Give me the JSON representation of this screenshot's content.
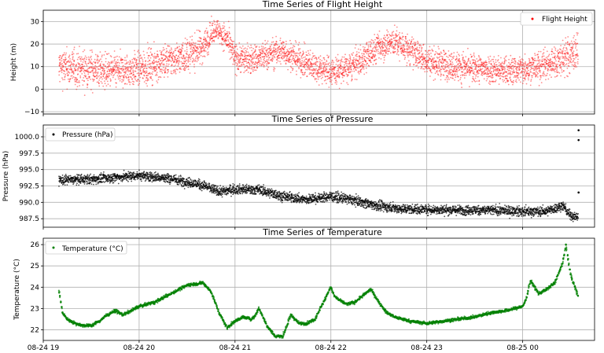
{
  "chart_data": [
    {
      "type": "scatter",
      "title": "Time Series of Flight Height",
      "xlabel": "",
      "ylabel": "Height (m)",
      "ylim": [
        -11,
        35
      ],
      "yticks": [
        -10,
        0,
        10,
        20,
        30
      ],
      "ytick_labels": [
        "−10",
        "0",
        "10",
        "20",
        "30"
      ],
      "grid": true,
      "legend_position": "top-right",
      "color": "#ff0000",
      "series": [
        {
          "name": "Flight Height",
          "x": [
            "19:10",
            "19:20",
            "19:30",
            "19:40",
            "19:50",
            "20:00",
            "20:10",
            "20:20",
            "20:30",
            "20:40",
            "20:48",
            "20:55",
            "21:00",
            "21:10",
            "21:20",
            "21:30",
            "21:40",
            "21:50",
            "22:00",
            "22:10",
            "22:20",
            "22:30",
            "22:40",
            "22:50",
            "23:00",
            "23:10",
            "23:20",
            "23:30",
            "23:40",
            "23:50",
            "00:00",
            "00:10",
            "00:20",
            "00:30",
            "00:35"
          ],
          "values": [
            10,
            9,
            9,
            8,
            8,
            9,
            11,
            13,
            15,
            19,
            27,
            22,
            14,
            13,
            15,
            17,
            13,
            10,
            8,
            9,
            13,
            19,
            21,
            17,
            13,
            11,
            10,
            9,
            9,
            8,
            9,
            10,
            12,
            15,
            17
          ],
          "spread": [
            9,
            9,
            9,
            8,
            8,
            8,
            8,
            8,
            8,
            8,
            5,
            7,
            7,
            7,
            7,
            7,
            7,
            7,
            7,
            7,
            7,
            7,
            7,
            7,
            7,
            7,
            7,
            7,
            7,
            7,
            7,
            7,
            8,
            9,
            9
          ]
        }
      ]
    },
    {
      "type": "scatter",
      "title": "Time Series of Pressure",
      "xlabel": "",
      "ylabel": "Pressure (hPa)",
      "ylim": [
        986.2,
        1001.8
      ],
      "yticks": [
        987.5,
        990.0,
        992.5,
        995.0,
        997.5,
        1000.0
      ],
      "ytick_labels": [
        "987.5",
        "990.0",
        "992.5",
        "995.0",
        "997.5",
        "1000.0"
      ],
      "grid": true,
      "legend_position": "top-left",
      "color": "#000000",
      "series": [
        {
          "name": "Pressure (hPa)",
          "x": [
            "19:10",
            "19:30",
            "19:50",
            "20:00",
            "20:20",
            "20:40",
            "20:50",
            "21:00",
            "21:15",
            "21:30",
            "21:45",
            "22:00",
            "22:15",
            "22:30",
            "22:45",
            "23:00",
            "23:20",
            "23:40",
            "00:00",
            "00:15",
            "00:25",
            "00:30",
            "00:35"
          ],
          "values": [
            993.4,
            993.5,
            993.9,
            994.1,
            993.6,
            992.6,
            991.6,
            992.0,
            991.9,
            990.9,
            990.4,
            990.9,
            990.3,
            989.4,
            989.0,
            988.9,
            988.8,
            988.8,
            988.6,
            988.6,
            989.5,
            988.0,
            987.7
          ],
          "spread": [
            0.8
          ]
        }
      ],
      "outliers": [
        {
          "x": "00:35",
          "y": 1001.0
        },
        {
          "x": "00:35",
          "y": 999.5
        },
        {
          "x": "00:35",
          "y": 991.5
        }
      ]
    },
    {
      "type": "scatter",
      "title": "Time Series of Temperature",
      "xlabel": "",
      "ylabel": "Temperature (°C)",
      "ylim": [
        21.5,
        26.3
      ],
      "yticks": [
        22,
        23,
        24,
        25,
        26
      ],
      "ytick_labels": [
        "22",
        "23",
        "24",
        "25",
        "26"
      ],
      "grid": true,
      "legend_position": "top-left",
      "color": "#008000",
      "series": [
        {
          "name": "Temperature (°C)",
          "x": [
            "19:10",
            "19:12",
            "19:15",
            "19:20",
            "19:25",
            "19:30",
            "19:35",
            "19:40",
            "19:45",
            "19:50",
            "19:55",
            "20:00",
            "20:10",
            "20:20",
            "20:30",
            "20:40",
            "20:45",
            "20:50",
            "20:55",
            "21:00",
            "21:05",
            "21:10",
            "21:12",
            "21:15",
            "21:20",
            "21:25",
            "21:30",
            "21:35",
            "21:40",
            "21:45",
            "21:50",
            "22:00",
            "22:02",
            "22:05",
            "22:10",
            "22:15",
            "22:20",
            "22:25",
            "22:30",
            "22:35",
            "22:40",
            "22:45",
            "22:50",
            "23:00",
            "23:10",
            "23:20",
            "23:30",
            "23:40",
            "23:50",
            "00:00",
            "00:02",
            "00:05",
            "00:10",
            "00:15",
            "00:20",
            "00:25",
            "00:27",
            "00:30",
            "00:35"
          ],
          "values": [
            23.8,
            22.8,
            22.5,
            22.3,
            22.2,
            22.2,
            22.4,
            22.7,
            22.9,
            22.7,
            22.9,
            23.1,
            23.3,
            23.7,
            24.1,
            24.2,
            23.8,
            22.8,
            22.1,
            22.4,
            22.6,
            22.5,
            22.6,
            23.0,
            22.2,
            21.7,
            21.7,
            22.7,
            22.3,
            22.3,
            22.5,
            24.0,
            23.6,
            23.4,
            23.2,
            23.3,
            23.6,
            23.9,
            23.3,
            22.8,
            22.6,
            22.5,
            22.4,
            22.3,
            22.4,
            22.5,
            22.6,
            22.8,
            22.9,
            23.1,
            23.4,
            24.3,
            23.7,
            23.9,
            24.2,
            25.1,
            26.0,
            24.6,
            23.5
          ],
          "spread": [
            0.08
          ]
        }
      ]
    }
  ],
  "x_axis": {
    "ticks": [
      "08-24 19",
      "08-24 20",
      "08-24 21",
      "08-24 22",
      "08-24 23",
      "08-25 00"
    ],
    "range": [
      "19:00",
      "00:45"
    ]
  }
}
